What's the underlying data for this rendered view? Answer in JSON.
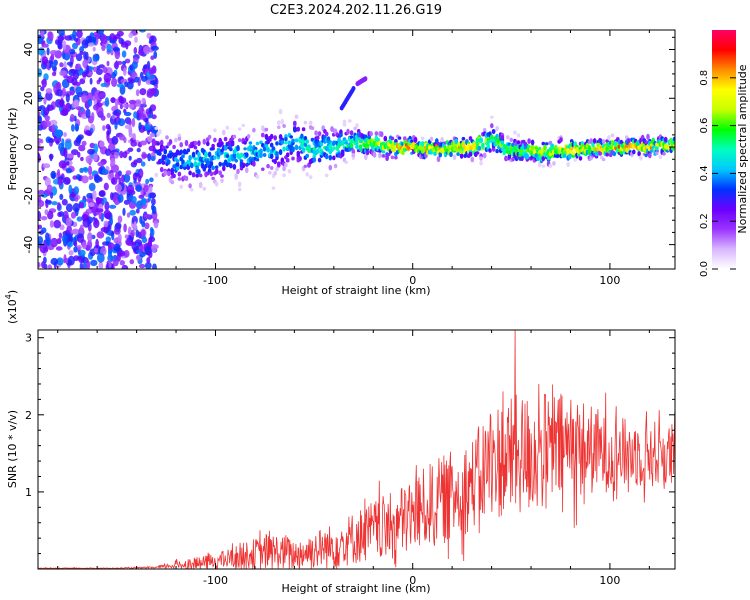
{
  "chart_data": [
    {
      "type": "heatmap",
      "title": "C2E3.2024.202.11.26.G19",
      "xlabel": "Height of straight line (km)",
      "ylabel": "Frequency (Hz)",
      "xlim": [
        -190,
        133
      ],
      "ylim": [
        -50,
        48
      ],
      "x_ticks": [
        -100,
        0,
        100
      ],
      "x_tick_labels": [
        "-100",
        "0",
        "100"
      ],
      "y_ticks": [
        -40,
        -20,
        0,
        20,
        40
      ],
      "y_tick_labels": [
        "-40",
        "-20",
        "0",
        "20",
        "40"
      ],
      "colorbar": {
        "label": "Normalized spectral amplitude",
        "range": [
          0,
          1
        ],
        "ticks": [
          0,
          0.2,
          0.4,
          0.6,
          0.8
        ],
        "tick_labels": [
          "0.0",
          "0.2",
          "0.4",
          "0.6",
          "0.8"
        ],
        "colormap": [
          "#ffffff",
          "#d8b6ff",
          "#9a33ff",
          "#6a00ff",
          "#0033ff",
          "#00c8ff",
          "#00ffbe",
          "#00ff00",
          "#c8ff00",
          "#ffff00",
          "#ff8c00",
          "#ff0000",
          "#ff0066"
        ]
      },
      "noise_region": {
        "x_range": [
          -190,
          -130
        ],
        "y_range": [
          -50,
          48
        ],
        "intensity": 0.35
      },
      "ridge": {
        "x": [
          -130,
          -120,
          -110,
          -100,
          -90,
          -80,
          -70,
          -60,
          -50,
          -40,
          -30,
          -20,
          -10,
          0,
          10,
          20,
          30,
          40,
          50,
          60,
          70,
          80,
          90,
          100,
          110,
          120,
          133
        ],
        "freq": [
          -3,
          -6,
          -6,
          -4,
          -3,
          -2,
          -1,
          3,
          -1,
          0,
          2,
          1,
          0,
          0,
          -1,
          0,
          0,
          3,
          -1,
          -2,
          -2,
          -1,
          -1,
          0,
          0,
          0,
          1
        ],
        "width": [
          10,
          12,
          13,
          12,
          11,
          11,
          11,
          12,
          11,
          9,
          7,
          5,
          5,
          4,
          4,
          4,
          5,
          7,
          5,
          5,
          5,
          5,
          4,
          4,
          4,
          4,
          5
        ],
        "intensity": [
          0.35,
          0.4,
          0.45,
          0.45,
          0.45,
          0.45,
          0.45,
          0.45,
          0.5,
          0.5,
          0.55,
          0.7,
          0.8,
          0.85,
          0.8,
          0.85,
          0.8,
          0.6,
          0.65,
          0.7,
          0.7,
          0.75,
          0.75,
          0.8,
          0.85,
          0.8,
          0.7
        ]
      },
      "streaks": [
        {
          "x": [
            -36,
            -30
          ],
          "freq": [
            16,
            24
          ],
          "intensity": 0.3
        },
        {
          "x": [
            -28,
            -24
          ],
          "freq": [
            26,
            28
          ],
          "intensity": 0.2
        }
      ]
    },
    {
      "type": "line",
      "title": "",
      "xlabel": "Height of straight line (km)",
      "ylabel": "SNR (10 * v/v)",
      "y_multiplier": "(x10",
      "y_multiplier_exp": "4",
      "y_multiplier_close": ")",
      "xlim": [
        -190,
        133
      ],
      "ylim": [
        0,
        3.1
      ],
      "x_ticks": [
        -100,
        0,
        100
      ],
      "x_tick_labels": [
        "-100",
        "0",
        "100"
      ],
      "y_ticks": [
        1,
        2,
        3
      ],
      "y_tick_labels": [
        "1",
        "2",
        "3"
      ],
      "line_color": "#ee3333",
      "series": [
        {
          "name": "SNR",
          "x": [
            -190,
            -170,
            -150,
            -140,
            -130,
            -120,
            -110,
            -100,
            -90,
            -80,
            -70,
            -60,
            -50,
            -40,
            -30,
            -20,
            -10,
            0,
            10,
            20,
            30,
            40,
            50,
            60,
            70,
            80,
            90,
            100,
            110,
            120,
            133
          ],
          "mean": [
            0.01,
            0.01,
            0.01,
            0.015,
            0.02,
            0.05,
            0.07,
            0.1,
            0.15,
            0.2,
            0.22,
            0.18,
            0.25,
            0.3,
            0.4,
            0.5,
            0.55,
            0.7,
            0.85,
            0.95,
            1.1,
            1.4,
            1.45,
            1.5,
            1.55,
            1.6,
            1.55,
            1.5,
            1.5,
            1.5,
            1.45
          ],
          "spread": [
            0.005,
            0.005,
            0.005,
            0.008,
            0.01,
            0.05,
            0.08,
            0.1,
            0.15,
            0.2,
            0.25,
            0.2,
            0.25,
            0.3,
            0.35,
            0.4,
            0.45,
            0.5,
            0.55,
            0.6,
            0.6,
            0.75,
            0.8,
            0.8,
            0.75,
            0.7,
            0.6,
            0.5,
            0.45,
            0.45,
            0.45
          ],
          "max_spike": {
            "x": 52,
            "value": 3.1
          }
        }
      ]
    }
  ]
}
